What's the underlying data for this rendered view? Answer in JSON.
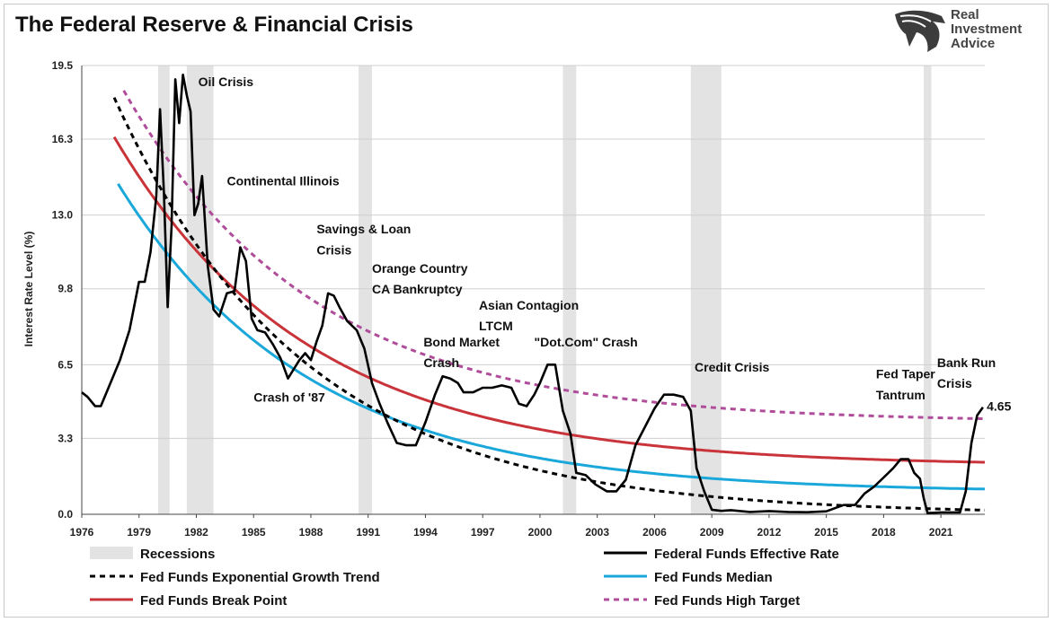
{
  "header": {
    "title": "The Federal Reserve & Financial Crisis",
    "logo_lines": [
      "Real",
      "Investment",
      "Advice"
    ]
  },
  "chart_data": {
    "type": "line",
    "title": "The Federal Reserve & Financial Crisis",
    "ylabel": "Interest Rate Level (%)",
    "xlabel": "",
    "xlim": [
      1976,
      2023.3
    ],
    "ylim": [
      0,
      19.5
    ],
    "x_ticks": [
      "1976",
      "1979",
      "1982",
      "1985",
      "1988",
      "1991",
      "1994",
      "1997",
      "2000",
      "2003",
      "2006",
      "2009",
      "2012",
      "2015",
      "2018",
      "2021"
    ],
    "y_ticks": [
      "0.0",
      "3.3",
      "6.5",
      "9.8",
      "13.0",
      "16.3",
      "19.5"
    ],
    "grid": "horizontal",
    "legend_position": "bottom",
    "recessions": [
      [
        1980.0,
        1980.6
      ],
      [
        1981.5,
        1982.9
      ],
      [
        1990.5,
        1991.2
      ],
      [
        2001.2,
        2001.9
      ],
      [
        2007.9,
        2009.5
      ],
      [
        2020.1,
        2020.5
      ]
    ],
    "series": [
      {
        "name": "Recessions",
        "kind": "band",
        "color": "#e3e3e3"
      },
      {
        "name": "Federal Funds Effective Rate",
        "kind": "line",
        "color": "#000000",
        "dash": "",
        "x": [
          1976,
          1976.3,
          1976.7,
          1977,
          1977.3,
          1977.6,
          1978,
          1978.5,
          1979,
          1979.3,
          1979.6,
          1979.9,
          1980.1,
          1980.3,
          1980.5,
          1980.7,
          1980.9,
          1981.1,
          1981.3,
          1981.5,
          1981.7,
          1981.9,
          1982.1,
          1982.3,
          1982.6,
          1982.9,
          1983.2,
          1983.6,
          1984,
          1984.3,
          1984.6,
          1984.9,
          1985.2,
          1985.6,
          1986,
          1986.4,
          1986.8,
          1987.1,
          1987.4,
          1987.7,
          1988,
          1988.3,
          1988.6,
          1988.9,
          1989.2,
          1989.5,
          1989.9,
          1990.4,
          1990.8,
          1991.2,
          1991.6,
          1992,
          1992.5,
          1993,
          1993.5,
          1994,
          1994.5,
          1994.9,
          1995.3,
          1995.7,
          1996,
          1996.5,
          1997,
          1997.5,
          1998,
          1998.5,
          1998.9,
          1999.3,
          1999.7,
          2000,
          2000.4,
          2000.8,
          2001.2,
          2001.6,
          2001.9,
          2002.4,
          2002.9,
          2003.5,
          2004,
          2004.5,
          2005,
          2005.5,
          2006,
          2006.5,
          2007,
          2007.5,
          2007.9,
          2008.2,
          2008.6,
          2009,
          2009.5,
          2010,
          2011,
          2012,
          2013,
          2014,
          2015,
          2015.9,
          2016.5,
          2017,
          2017.5,
          2018,
          2018.5,
          2018.9,
          2019.3,
          2019.6,
          2019.9,
          2020.1,
          2020.3,
          2021,
          2022,
          2022.3,
          2022.6,
          2022.9,
          2023.2
        ],
        "y": [
          5.3,
          5.1,
          4.7,
          4.7,
          5.3,
          5.9,
          6.7,
          8.0,
          10.1,
          10.1,
          11.4,
          13.8,
          17.6,
          14.0,
          9.0,
          12.5,
          18.9,
          17.0,
          19.1,
          18.2,
          17.5,
          13.0,
          13.5,
          14.7,
          10.8,
          8.9,
          8.6,
          9.6,
          9.7,
          11.6,
          11.0,
          8.5,
          8.0,
          7.9,
          7.4,
          6.8,
          5.9,
          6.3,
          6.7,
          7.0,
          6.7,
          7.5,
          8.2,
          9.6,
          9.5,
          9.0,
          8.4,
          8.0,
          7.2,
          5.7,
          4.8,
          4.0,
          3.1,
          3.0,
          3.0,
          4.0,
          5.2,
          6.0,
          5.9,
          5.7,
          5.3,
          5.3,
          5.5,
          5.5,
          5.6,
          5.5,
          4.8,
          4.7,
          5.2,
          5.7,
          6.5,
          6.5,
          4.5,
          3.5,
          1.8,
          1.7,
          1.3,
          1.0,
          1.0,
          1.5,
          3.0,
          3.8,
          4.6,
          5.2,
          5.2,
          5.1,
          4.5,
          2.0,
          1.0,
          0.2,
          0.15,
          0.18,
          0.1,
          0.14,
          0.1,
          0.09,
          0.13,
          0.4,
          0.4,
          0.9,
          1.2,
          1.6,
          2.0,
          2.4,
          2.4,
          1.8,
          1.55,
          0.7,
          0.05,
          0.08,
          0.08,
          1.0,
          3.1,
          4.3,
          4.65
        ]
      },
      {
        "name": "Fed Funds Exponential Growth Trend",
        "kind": "line",
        "color": "#000000",
        "dash": "6,5"
      },
      {
        "name": "Fed Funds Median",
        "kind": "line",
        "color": "#1aa7d9",
        "dash": ""
      },
      {
        "name": "Fed Funds Break Point",
        "kind": "line",
        "color": "#c9343a",
        "dash": ""
      },
      {
        "name": "Fed Funds High Target",
        "kind": "line",
        "color": "#b04d9a",
        "dash": "6,5"
      }
    ],
    "annotations": [
      {
        "text": "Oil Crisis",
        "x": 1982.1,
        "y": 18.6
      },
      {
        "text": "Continental Illinois",
        "x": 1983.6,
        "y": 14.3
      },
      {
        "text": "Savings & Loan",
        "x": 1988.3,
        "y": 12.2
      },
      {
        "text": "Crisis",
        "x": 1988.3,
        "y": 11.3
      },
      {
        "text": "Orange Country",
        "x": 1991.2,
        "y": 10.5
      },
      {
        "text": "CA Bankruptcy",
        "x": 1991.2,
        "y": 9.6
      },
      {
        "text": "Asian Contagion",
        "x": 1996.8,
        "y": 8.9
      },
      {
        "text": "LTCM",
        "x": 1996.8,
        "y": 8.0
      },
      {
        "text": "\"Dot.Com\" Crash",
        "x": 1999.7,
        "y": 7.3
      },
      {
        "text": "Bond Market",
        "x": 1993.9,
        "y": 7.3
      },
      {
        "text": "Crash",
        "x": 1993.9,
        "y": 6.4
      },
      {
        "text": "Crash of '87",
        "x": 1985.0,
        "y": 4.9
      },
      {
        "text": "Credit Crisis",
        "x": 2008.1,
        "y": 6.2
      },
      {
        "text": "Fed Taper",
        "x": 2017.6,
        "y": 5.9
      },
      {
        "text": "Tantrum",
        "x": 2017.6,
        "y": 5.0
      },
      {
        "text": "Bank Run",
        "x": 2020.8,
        "y": 6.4
      },
      {
        "text": "Crisis",
        "x": 2020.8,
        "y": 5.5
      },
      {
        "text": "4.65",
        "x": 2023.4,
        "y": 4.5
      }
    ]
  },
  "legend": {
    "items": [
      {
        "label": "Recessions",
        "swatch": "band",
        "color": "#e3e3e3",
        "dash": ""
      },
      {
        "label": "Federal Funds Effective Rate",
        "swatch": "line",
        "color": "#000000",
        "dash": ""
      },
      {
        "label": "Fed Funds Exponential Growth Trend",
        "swatch": "line",
        "color": "#000000",
        "dash": "6,5"
      },
      {
        "label": "Fed Funds Median",
        "swatch": "line",
        "color": "#1aa7d9",
        "dash": ""
      },
      {
        "label": "Fed Funds Break Point",
        "swatch": "line",
        "color": "#c9343a",
        "dash": ""
      },
      {
        "label": "Fed Funds High Target",
        "swatch": "line",
        "color": "#b04d9a",
        "dash": "6,5"
      }
    ]
  }
}
